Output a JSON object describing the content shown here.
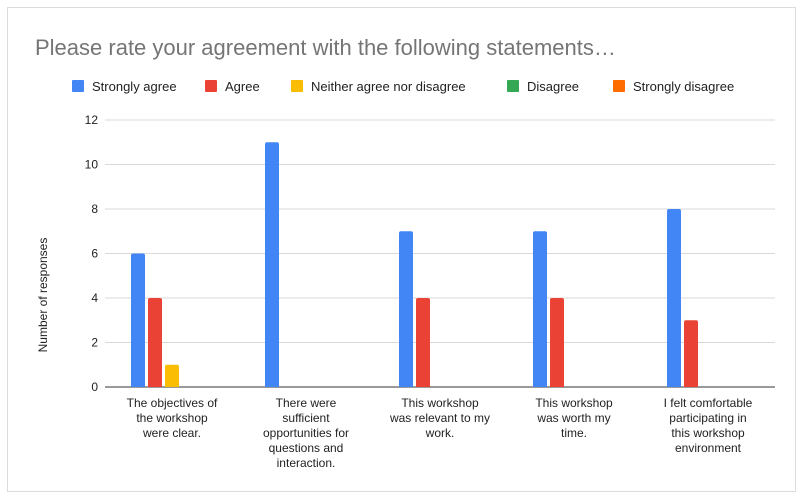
{
  "chart_data": {
    "type": "bar",
    "title": "Please rate your agreement with the following statements…",
    "ylabel": "Number of responses",
    "xlabel": "",
    "ylim": [
      0,
      12
    ],
    "yticks": [
      0,
      2,
      4,
      6,
      8,
      10,
      12
    ],
    "grid": true,
    "legend_position": "top",
    "categories": [
      [
        "The objectives of",
        "the workshop",
        "were clear."
      ],
      [
        "There were",
        "sufficient",
        "opportunities for",
        "questions and",
        "interaction."
      ],
      [
        "This workshop",
        "was relevant to my",
        "work."
      ],
      [
        "This workshop",
        "was worth my",
        "time."
      ],
      [
        "I felt comfortable",
        "participating in",
        "this workshop",
        "environment"
      ]
    ],
    "series": [
      {
        "name": "Strongly agree",
        "color": "#4285f4",
        "values": [
          6,
          11,
          7,
          7,
          8
        ]
      },
      {
        "name": "Agree",
        "color": "#ea4335",
        "values": [
          4,
          0,
          4,
          4,
          3
        ]
      },
      {
        "name": "Neither agree nor disagree",
        "color": "#fbbc04",
        "values": [
          1,
          0,
          0,
          0,
          0
        ]
      },
      {
        "name": "Disagree",
        "color": "#34a853",
        "values": [
          0,
          0,
          0,
          0,
          0
        ]
      },
      {
        "name": "Strongly disagree",
        "color": "#ff6d01",
        "values": [
          0,
          0,
          0,
          0,
          0
        ]
      }
    ]
  }
}
